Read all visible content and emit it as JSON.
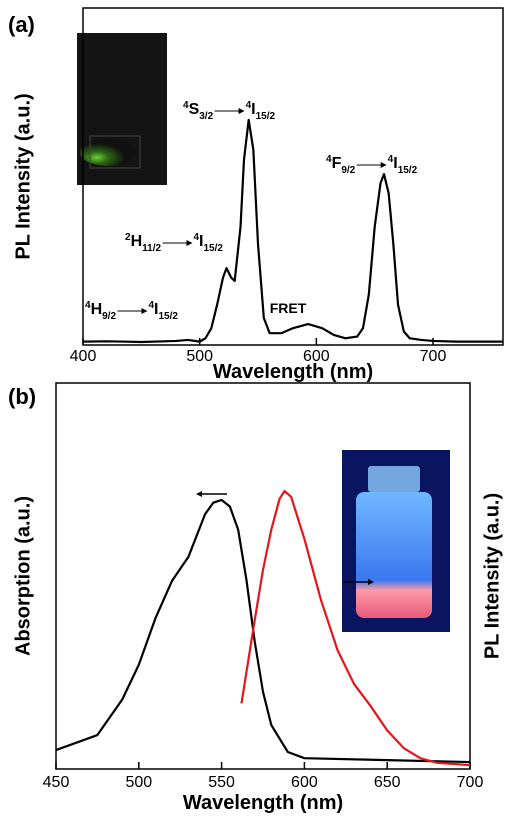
{
  "chart_data": [
    {
      "type": "line",
      "panel_label": "(a)",
      "xlabel": "Wavelength (nm)",
      "ylabel": "PL Intensity (a.u.)",
      "xlim": [
        400,
        760
      ],
      "xticks": [
        400,
        500,
        600,
        700
      ],
      "ylim": [
        0,
        100
      ],
      "grid": false,
      "x": [
        400,
        420,
        450,
        480,
        490,
        500,
        505,
        510,
        515,
        520,
        523,
        527,
        530,
        535,
        538,
        542,
        546,
        550,
        555,
        560,
        570,
        580,
        593,
        605,
        615,
        625,
        635,
        640,
        645,
        650,
        655,
        658,
        662,
        666,
        670,
        675,
        680,
        690,
        700,
        720,
        740,
        760
      ],
      "values": [
        1.0,
        1.1,
        0.9,
        1.2,
        1.5,
        1.0,
        2,
        5,
        12,
        20,
        22.8,
        20,
        19,
        35,
        55,
        66.8,
        58,
        30,
        8,
        3.5,
        3.5,
        5,
        6.2,
        5,
        3,
        2,
        2.5,
        5,
        15,
        35,
        48,
        50.7,
        45,
        30,
        12,
        4,
        2,
        1.5,
        1.2,
        1,
        1,
        1
      ],
      "color": "#000000",
      "annotations": [
        "FRET"
      ],
      "transitions": [
        {
          "upper": {
            "sup": "4",
            "term": "H",
            "sub": "9/2"
          },
          "lower": {
            "sup": "4",
            "term": "I",
            "sub": "15/2"
          }
        },
        {
          "upper": {
            "sup": "2",
            "term": "H",
            "sub": "11/2"
          },
          "lower": {
            "sup": "4",
            "term": "I",
            "sub": "15/2"
          }
        },
        {
          "upper": {
            "sup": "4",
            "term": "S",
            "sub": "3/2"
          },
          "lower": {
            "sup": "4",
            "term": "I",
            "sub": "15/2"
          }
        },
        {
          "upper": {
            "sup": "4",
            "term": "F",
            "sub": "9/2"
          },
          "lower": {
            "sup": "4",
            "term": "I",
            "sub": "15/2"
          }
        }
      ]
    },
    {
      "type": "line",
      "panel_label": "(b)",
      "xlabel": "Wavelength (nm)",
      "ylabel": "Absorption (a.u.)",
      "y2label": "PL Intensity (a.u.)",
      "xlim": [
        450,
        700
      ],
      "xticks": [
        450,
        500,
        550,
        600,
        650,
        700
      ],
      "ylim": [
        0,
        100
      ],
      "y2lim": [
        0,
        100
      ],
      "grid": false,
      "series": [
        {
          "color": "#000000",
          "x": [
            450,
            475,
            490,
            500,
            510,
            520,
            530,
            540,
            545,
            550,
            555,
            560,
            565,
            570,
            575,
            580,
            590,
            600,
            650,
            700
          ],
          "values": [
            4.9,
            8.8,
            18,
            27,
            39,
            48.7,
            55,
            66,
            69,
            69.7,
            68,
            62,
            49,
            33,
            20,
            11.4,
            4.4,
            2.8,
            2.3,
            1.8
          ]
        },
        {
          "color": "#e8141b",
          "axis": "y2",
          "x": [
            562,
            570,
            575,
            580,
            585,
            588,
            592,
            600,
            610,
            620,
            630,
            640,
            650,
            660,
            670,
            680,
            700
          ],
          "values": [
            17,
            38.6,
            51.6,
            62,
            70,
            72,
            70.5,
            59.6,
            43.8,
            30.8,
            22,
            16.3,
            10,
            5.4,
            2.8,
            1.6,
            1
          ]
        }
      ]
    }
  ]
}
